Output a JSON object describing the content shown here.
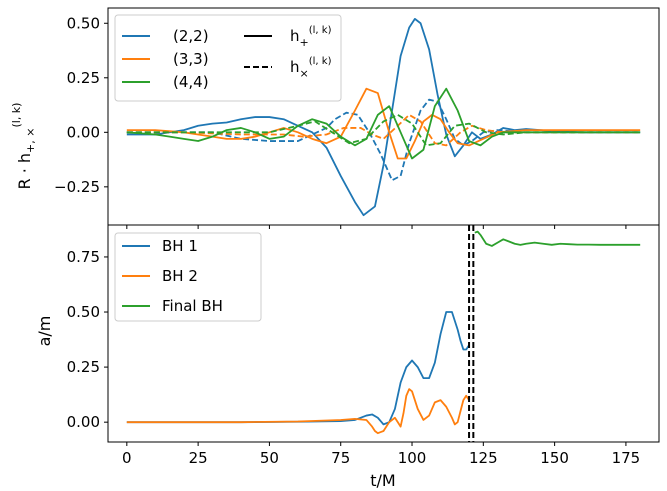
{
  "chart_data": [
    {
      "type": "line",
      "xlim": [
        -6.6,
        186.6
      ],
      "ylim": [
        -0.425,
        0.57
      ],
      "ylabel": "R · h+,× (l,k)",
      "ylabel_parts": {
        "main": "R · h",
        "sub": "+, ×",
        "sup": "(l, k)"
      },
      "xticks": [
        0,
        25,
        50,
        75,
        100,
        125,
        150,
        175
      ],
      "yticks": [
        -0.25,
        0.0,
        0.25,
        0.5
      ],
      "ytick_labels": [
        "−0.25",
        "0.00",
        "0.25",
        "0.50"
      ],
      "grid": false,
      "legend_placement": "top-left",
      "legend": [
        {
          "label": "(2,2)",
          "color": "#1f77b4",
          "style": "solid"
        },
        {
          "label": "(3,3)",
          "color": "#ff7f0e",
          "style": "solid"
        },
        {
          "label": "(4,4)",
          "color": "#2ca02c",
          "style": "solid"
        },
        {
          "label": "h+(l,k)",
          "label_parts": {
            "main": "h",
            "sub": "+",
            "sup": "(l, k)"
          },
          "color": "#000000",
          "style": "solid"
        },
        {
          "label": "h×(l,k)",
          "label_parts": {
            "main": "h",
            "sub": "×",
            "sup": "(l, k)"
          },
          "color": "#000000",
          "style": "dashed"
        }
      ],
      "series": [
        {
          "name": "(2,2)",
          "polarization": "plus",
          "color": "#1f77b4",
          "dashed": false,
          "x": [
            0,
            10,
            20,
            25,
            30,
            35,
            40,
            45,
            50,
            55,
            60,
            65,
            70,
            75,
            80,
            83,
            87,
            90,
            93,
            96,
            99,
            101,
            103,
            106,
            109,
            112,
            115,
            118,
            121,
            124,
            128,
            132,
            136,
            140,
            150,
            160,
            170,
            180
          ],
          "y": [
            -0.01,
            -0.01,
            0.01,
            0.03,
            0.04,
            0.045,
            0.06,
            0.07,
            0.07,
            0.06,
            0.03,
            0.0,
            -0.07,
            -0.2,
            -0.32,
            -0.38,
            -0.34,
            -0.15,
            0.1,
            0.35,
            0.48,
            0.52,
            0.5,
            0.38,
            0.17,
            -0.01,
            -0.11,
            -0.06,
            0.0,
            -0.03,
            -0.01,
            0.02,
            0.01,
            0.015,
            0.005,
            0.0,
            0.0,
            0.0
          ]
        },
        {
          "name": "(2,2)",
          "polarization": "cross",
          "color": "#1f77b4",
          "dashed": true,
          "x": [
            0,
            10,
            20,
            30,
            40,
            50,
            55,
            60,
            65,
            70,
            73,
            77,
            81,
            85,
            89,
            93,
            96,
            99,
            103,
            106,
            109,
            112,
            115,
            118,
            121,
            125,
            130,
            140,
            160,
            180
          ],
          "y": [
            0.0,
            0.0,
            0.0,
            0.0,
            -0.03,
            -0.04,
            -0.04,
            -0.04,
            -0.01,
            0.02,
            0.06,
            0.09,
            0.08,
            0.0,
            -0.1,
            -0.22,
            -0.2,
            -0.05,
            0.1,
            0.15,
            0.14,
            0.06,
            -0.03,
            -0.06,
            -0.04,
            0.0,
            0.01,
            0.0,
            0.0,
            0.0
          ]
        },
        {
          "name": "(3,3)",
          "polarization": "plus",
          "color": "#ff7f0e",
          "dashed": false,
          "x": [
            0,
            10,
            20,
            25,
            30,
            35,
            40,
            45,
            50,
            55,
            60,
            65,
            70,
            75,
            80,
            84,
            88,
            92,
            95,
            98,
            101,
            104,
            107,
            110,
            113,
            116,
            120,
            125,
            130,
            140,
            160,
            180
          ],
          "y": [
            0.01,
            0.01,
            0.0,
            -0.01,
            -0.02,
            -0.03,
            -0.03,
            -0.02,
            0.0,
            0.02,
            0.0,
            -0.03,
            -0.05,
            -0.02,
            0.1,
            0.2,
            0.18,
            0.0,
            -0.12,
            -0.12,
            -0.04,
            0.05,
            0.08,
            0.06,
            0.0,
            -0.05,
            -0.06,
            -0.03,
            0.0,
            0.01,
            0.01,
            0.01
          ]
        },
        {
          "name": "(3,3)",
          "polarization": "cross",
          "color": "#ff7f0e",
          "dashed": true,
          "x": [
            0,
            20,
            40,
            55,
            62,
            70,
            76,
            82,
            86,
            90,
            95,
            99,
            103,
            108,
            112,
            117,
            121,
            126,
            132,
            140,
            160,
            180
          ],
          "y": [
            0.0,
            0.0,
            -0.01,
            -0.01,
            -0.02,
            -0.01,
            0.02,
            0.02,
            -0.01,
            -0.03,
            0.03,
            0.08,
            0.05,
            -0.05,
            -0.06,
            0.0,
            0.03,
            0.01,
            0.0,
            0.0,
            0.0,
            0.0
          ]
        },
        {
          "name": "(4,4)",
          "polarization": "plus",
          "color": "#2ca02c",
          "dashed": false,
          "x": [
            0,
            10,
            15,
            20,
            25,
            30,
            35,
            40,
            45,
            50,
            55,
            60,
            65,
            70,
            75,
            80,
            84,
            88,
            92,
            96,
            100,
            104,
            108,
            112,
            116,
            120,
            124,
            128,
            132,
            140,
            160,
            180
          ],
          "y": [
            0.0,
            -0.01,
            -0.02,
            -0.03,
            -0.04,
            -0.02,
            0.01,
            0.02,
            0.0,
            -0.03,
            -0.02,
            0.03,
            0.06,
            0.04,
            -0.02,
            -0.06,
            -0.03,
            0.08,
            0.12,
            0.0,
            -0.12,
            -0.08,
            0.12,
            0.2,
            0.1,
            -0.04,
            -0.06,
            -0.02,
            0.0,
            0.0,
            0.0,
            0.0
          ]
        },
        {
          "name": "(4,4)",
          "polarization": "cross",
          "color": "#2ca02c",
          "dashed": true,
          "x": [
            0,
            20,
            30,
            40,
            50,
            60,
            66,
            72,
            78,
            84,
            90,
            95,
            100,
            105,
            110,
            115,
            120,
            126,
            132,
            140,
            160,
            180
          ],
          "y": [
            0.0,
            0.0,
            0.0,
            0.0,
            0.0,
            0.03,
            0.05,
            0.0,
            -0.05,
            -0.03,
            0.05,
            0.08,
            0.04,
            -0.06,
            -0.05,
            0.03,
            0.04,
            0.0,
            -0.01,
            0.0,
            0.0,
            0.0
          ]
        }
      ]
    },
    {
      "type": "line",
      "xlabel": "t/M",
      "ylabel": "a/m",
      "xlim": [
        -6.6,
        186.6
      ],
      "ylim": [
        -0.09,
        0.895
      ],
      "xticks": [
        0,
        25,
        50,
        75,
        100,
        125,
        150,
        175
      ],
      "yticks": [
        0.0,
        0.25,
        0.5,
        0.75
      ],
      "ytick_labels": [
        "0.00",
        "0.25",
        "0.50",
        "0.75"
      ],
      "grid": false,
      "legend_placement": "top-left",
      "legend": [
        {
          "label": "BH 1",
          "color": "#1f77b4",
          "style": "solid"
        },
        {
          "label": "BH 2",
          "color": "#ff7f0e",
          "style": "solid"
        },
        {
          "label": "Final BH",
          "color": "#2ca02c",
          "style": "solid"
        }
      ],
      "vlines": [
        {
          "x": 120.0
        },
        {
          "x": 121.5
        }
      ],
      "vline_color": "#000000",
      "series": [
        {
          "name": "BH 1",
          "color": "#1f77b4",
          "x": [
            0,
            20,
            40,
            60,
            75,
            80,
            84,
            86,
            88,
            90,
            92,
            94,
            96,
            98,
            100,
            102,
            104,
            106,
            108,
            110,
            112,
            114,
            116,
            117,
            118,
            119,
            120
          ],
          "y": [
            0.0,
            0.0,
            0.0,
            0.002,
            0.005,
            0.01,
            0.03,
            0.035,
            0.02,
            -0.01,
            0.0,
            0.06,
            0.18,
            0.25,
            0.28,
            0.25,
            0.2,
            0.2,
            0.27,
            0.4,
            0.5,
            0.5,
            0.42,
            0.37,
            0.33,
            0.33,
            0.35
          ]
        },
        {
          "name": "BH 2",
          "color": "#ff7f0e",
          "x": [
            0,
            20,
            40,
            60,
            75,
            80,
            84,
            86,
            87,
            88,
            90,
            92,
            94,
            95,
            96,
            97,
            98,
            99,
            100,
            102,
            104,
            106,
            108,
            110,
            112,
            114,
            115,
            116,
            117,
            118,
            119,
            120
          ],
          "y": [
            0.0,
            0.0,
            0.0,
            0.003,
            0.01,
            0.015,
            0.01,
            -0.02,
            -0.04,
            -0.05,
            -0.04,
            0.0,
            0.02,
            0.0,
            -0.02,
            0.04,
            0.12,
            0.15,
            0.14,
            0.06,
            0.01,
            0.03,
            0.09,
            0.1,
            0.07,
            0.02,
            -0.01,
            0.0,
            0.05,
            0.1,
            0.12,
            0.1
          ]
        },
        {
          "name": "Final BH",
          "color": "#2ca02c",
          "x": [
            122,
            123,
            124,
            126,
            128,
            130,
            132,
            134,
            136,
            138,
            140,
            143,
            146,
            149,
            152,
            155,
            158,
            162,
            166,
            170,
            175,
            180
          ],
          "y": [
            0.86,
            0.865,
            0.85,
            0.81,
            0.8,
            0.815,
            0.83,
            0.82,
            0.81,
            0.805,
            0.81,
            0.815,
            0.81,
            0.805,
            0.81,
            0.808,
            0.806,
            0.806,
            0.805,
            0.805,
            0.805,
            0.805
          ]
        }
      ]
    }
  ]
}
